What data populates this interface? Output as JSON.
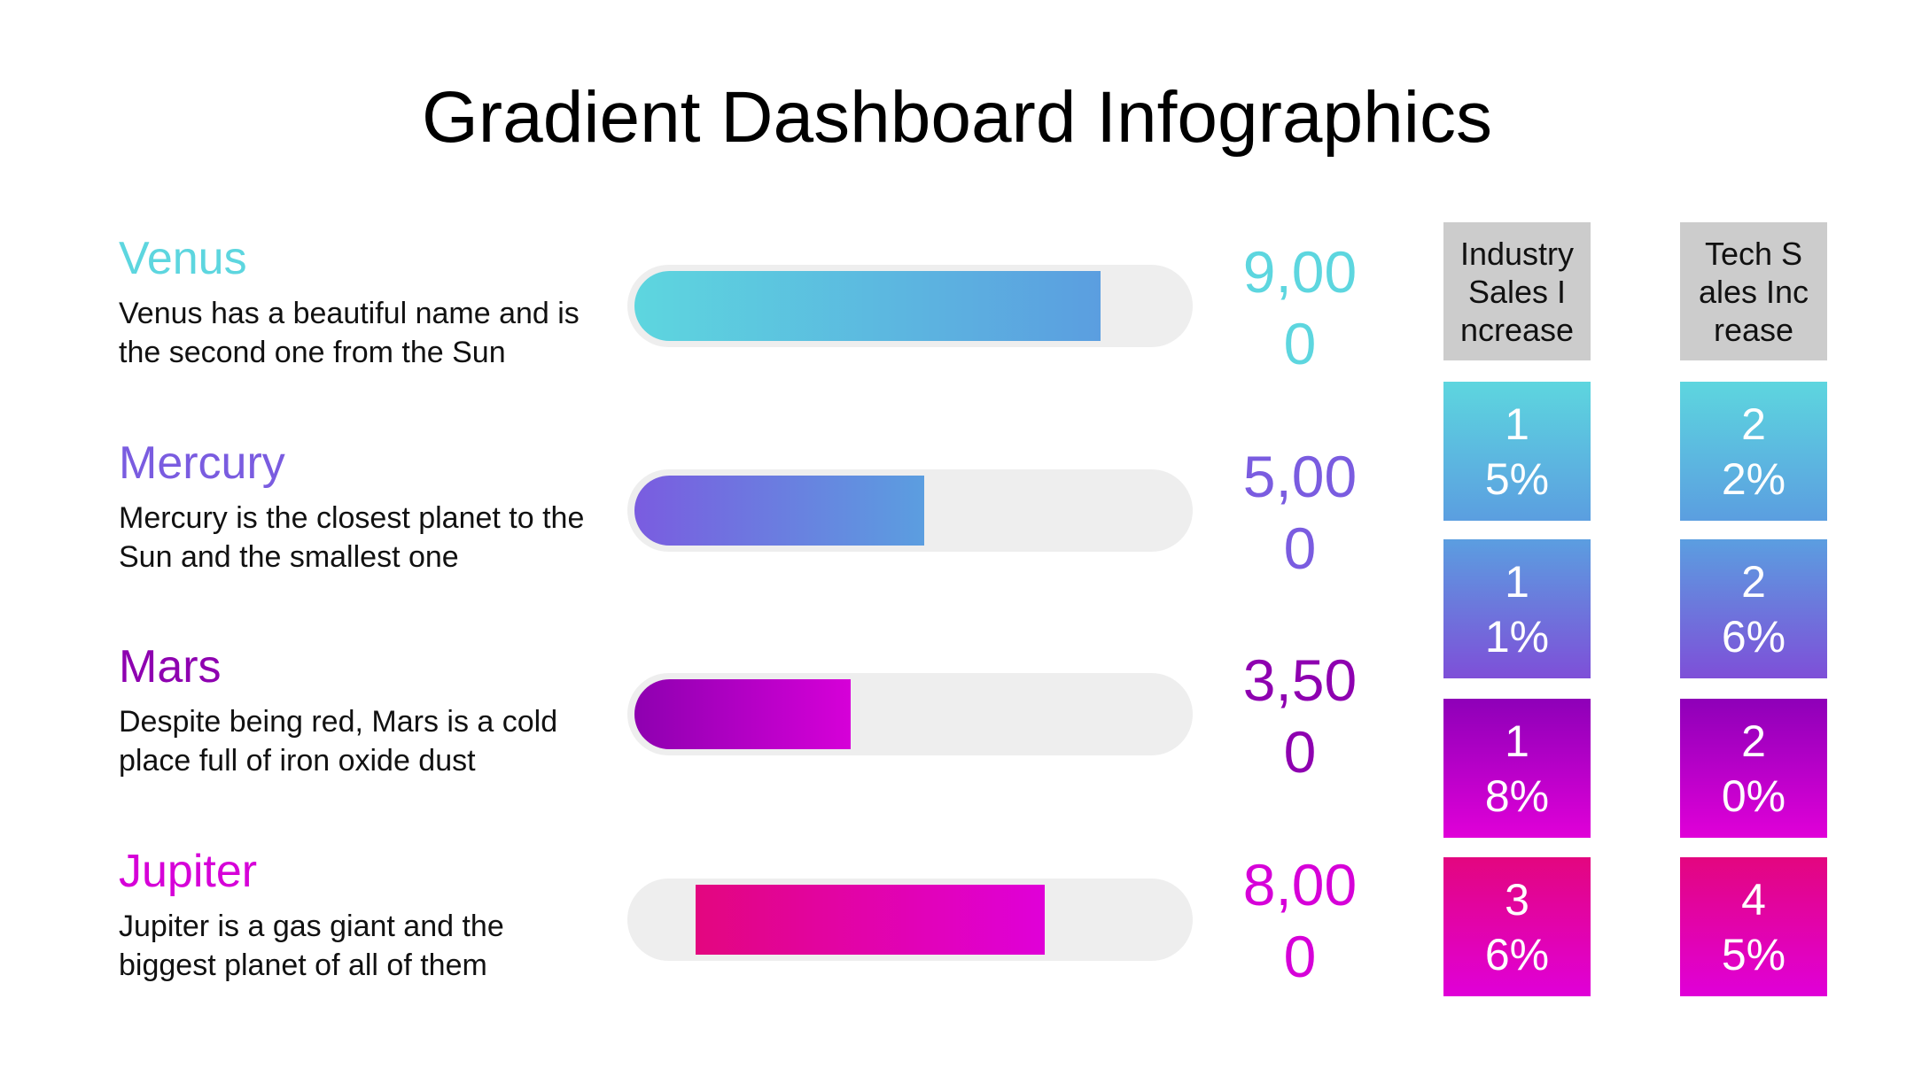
{
  "title": "Gradient Dashboard Infographics",
  "planets": [
    {
      "name": "Venus",
      "description": "Venus has a beautiful name and is the second one from the Sun",
      "value": "9,000"
    },
    {
      "name": "Mercury",
      "description": "Mercury is the closest planet to the Sun and the smallest one",
      "value": "5,000"
    },
    {
      "name": "Mars",
      "description": "Despite being red, Mars is a cold place full of iron oxide dust",
      "value": "3,500"
    },
    {
      "name": "Jupiter",
      "description": "Jupiter is a gas giant and the biggest planet of all of them",
      "value": "8,000"
    }
  ],
  "table": {
    "headers": [
      "Industry Sales Increase",
      "Tech Sales Increase"
    ],
    "rows": [
      [
        "15%",
        "22%"
      ],
      [
        "11%",
        "26%"
      ],
      [
        "18%",
        "20%"
      ],
      [
        "36%",
        "45%"
      ]
    ]
  }
}
